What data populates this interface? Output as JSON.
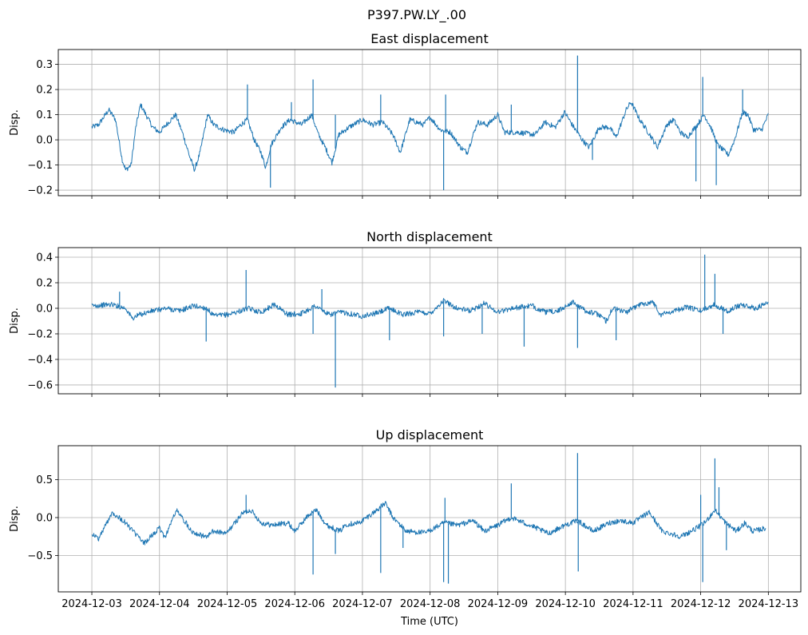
{
  "chart_data": {
    "type": "line",
    "suptitle": "P397.PW.LY_.00",
    "xlabel": "Time (UTC)",
    "x_unit": "days since 2024-12-03 00:00 UTC",
    "xlim": [
      -0.496,
      10.48
    ],
    "x_ticks": [
      0,
      1,
      2,
      3,
      4,
      5,
      6,
      7,
      8,
      9,
      10
    ],
    "x_tick_labels": [
      "2024-12-03",
      "2024-12-04",
      "2024-12-05",
      "2024-12-06",
      "2024-12-07",
      "2024-12-08",
      "2024-12-09",
      "2024-12-10",
      "2024-12-11",
      "2024-12-12",
      "2024-12-13"
    ],
    "grid": true,
    "color": "#1f77b4",
    "panels": [
      {
        "title": "East displacement",
        "ylabel": "Disp.",
        "ylim": [
          -0.222,
          0.359
        ],
        "y_ticks": [
          -0.2,
          -0.1,
          0.0,
          0.1,
          0.2,
          0.3
        ],
        "y_tick_labels": [
          "−0.2",
          "−0.1",
          "0.0",
          "0.1",
          "0.2",
          "0.3"
        ],
        "series": [
          [
            0,
            0.05
          ],
          [
            0.1,
            0.06
          ],
          [
            0.25,
            0.12
          ],
          [
            0.35,
            0.08
          ],
          [
            0.45,
            -0.08
          ],
          [
            0.5,
            -0.12
          ],
          [
            0.58,
            -0.1
          ],
          [
            0.65,
            0.05
          ],
          [
            0.72,
            0.14
          ],
          [
            0.8,
            0.1
          ],
          [
            0.9,
            0.05
          ],
          [
            1.0,
            0.03
          ],
          [
            1.1,
            0.06
          ],
          [
            1.24,
            0.1
          ],
          [
            1.35,
            0.02
          ],
          [
            1.45,
            -0.07
          ],
          [
            1.52,
            -0.12
          ],
          [
            1.6,
            -0.05
          ],
          [
            1.71,
            0.1
          ],
          [
            1.8,
            0.06
          ],
          [
            1.95,
            0.04
          ],
          [
            2.1,
            0.03
          ],
          [
            2.2,
            0.06
          ],
          [
            2.3,
            0.08
          ],
          [
            2.4,
            0.0
          ],
          [
            2.5,
            -0.05
          ],
          [
            2.57,
            -0.11
          ],
          [
            2.65,
            -0.02
          ],
          [
            2.8,
            0.05
          ],
          [
            2.93,
            0.08
          ],
          [
            3.1,
            0.06
          ],
          [
            3.25,
            0.1
          ],
          [
            3.35,
            0.02
          ],
          [
            3.45,
            -0.03
          ],
          [
            3.55,
            -0.09
          ],
          [
            3.65,
            0.02
          ],
          [
            3.8,
            0.05
          ],
          [
            4.0,
            0.08
          ],
          [
            4.15,
            0.06
          ],
          [
            4.3,
            0.07
          ],
          [
            4.45,
            0.02
          ],
          [
            4.56,
            -0.05
          ],
          [
            4.7,
            0.08
          ],
          [
            4.9,
            0.06
          ],
          [
            5.0,
            0.09
          ],
          [
            5.15,
            0.04
          ],
          [
            5.3,
            0.03
          ],
          [
            5.45,
            -0.03
          ],
          [
            5.55,
            -0.05
          ],
          [
            5.7,
            0.07
          ],
          [
            5.85,
            0.06
          ],
          [
            6.0,
            0.1
          ],
          [
            6.1,
            0.03
          ],
          [
            6.3,
            0.03
          ],
          [
            6.55,
            0.02
          ],
          [
            6.7,
            0.07
          ],
          [
            6.85,
            0.05
          ],
          [
            6.99,
            0.11
          ],
          [
            7.1,
            0.06
          ],
          [
            7.25,
            0.0
          ],
          [
            7.35,
            -0.03
          ],
          [
            7.5,
            0.05
          ],
          [
            7.65,
            0.05
          ],
          [
            7.75,
            0.01
          ],
          [
            7.9,
            0.12
          ],
          [
            7.97,
            0.15
          ],
          [
            8.1,
            0.08
          ],
          [
            8.25,
            0.02
          ],
          [
            8.36,
            -0.03
          ],
          [
            8.5,
            0.06
          ],
          [
            8.6,
            0.08
          ],
          [
            8.7,
            0.03
          ],
          [
            8.8,
            0.01
          ],
          [
            8.95,
            0.06
          ],
          [
            9.05,
            0.1
          ],
          [
            9.15,
            0.05
          ],
          [
            9.25,
            -0.02
          ],
          [
            9.41,
            -0.06
          ],
          [
            9.5,
            0.0
          ],
          [
            9.62,
            0.11
          ],
          [
            9.7,
            0.1
          ],
          [
            9.78,
            0.04
          ],
          [
            9.9,
            0.04
          ],
          [
            10.0,
            0.1
          ]
        ],
        "spikes": [
          [
            2.3,
            0.22
          ],
          [
            2.64,
            -0.19
          ],
          [
            2.95,
            0.15
          ],
          [
            3.27,
            0.24
          ],
          [
            3.6,
            0.1
          ],
          [
            4.27,
            0.18
          ],
          [
            5.2,
            -0.2
          ],
          [
            5.23,
            0.18
          ],
          [
            6.2,
            0.14
          ],
          [
            7.18,
            0.335
          ],
          [
            7.4,
            -0.08
          ],
          [
            8.93,
            -0.165
          ],
          [
            9.03,
            0.25
          ],
          [
            9.23,
            -0.18
          ],
          [
            9.62,
            0.2
          ]
        ]
      },
      {
        "title": "North displacement",
        "ylabel": "Disp.",
        "ylim": [
          -0.669,
          0.475
        ],
        "y_ticks": [
          -0.6,
          -0.4,
          -0.2,
          0.0,
          0.2,
          0.4
        ],
        "y_tick_labels": [
          "−0.6",
          "−0.4",
          "−0.2",
          "0.0",
          "0.2",
          "0.4"
        ],
        "series": [
          [
            0,
            0.02
          ],
          [
            0.3,
            0.03
          ],
          [
            0.5,
            0.0
          ],
          [
            0.6,
            -0.08
          ],
          [
            0.7,
            -0.05
          ],
          [
            0.9,
            -0.02
          ],
          [
            1.1,
            0.0
          ],
          [
            1.3,
            -0.02
          ],
          [
            1.5,
            0.02
          ],
          [
            1.7,
            0.0
          ],
          [
            1.8,
            -0.06
          ],
          [
            2.0,
            -0.05
          ],
          [
            2.2,
            -0.02
          ],
          [
            2.3,
            0.0
          ],
          [
            2.5,
            -0.03
          ],
          [
            2.7,
            0.03
          ],
          [
            2.9,
            -0.05
          ],
          [
            3.1,
            -0.04
          ],
          [
            3.3,
            0.02
          ],
          [
            3.5,
            -0.05
          ],
          [
            3.7,
            -0.03
          ],
          [
            4.0,
            -0.06
          ],
          [
            4.2,
            -0.04
          ],
          [
            4.4,
            0.0
          ],
          [
            4.6,
            -0.05
          ],
          [
            4.8,
            -0.03
          ],
          [
            5.0,
            -0.04
          ],
          [
            5.2,
            0.06
          ],
          [
            5.4,
            0.0
          ],
          [
            5.6,
            -0.02
          ],
          [
            5.8,
            0.04
          ],
          [
            6.0,
            -0.03
          ],
          [
            6.2,
            0.0
          ],
          [
            6.5,
            0.02
          ],
          [
            6.7,
            -0.03
          ],
          [
            6.9,
            -0.02
          ],
          [
            7.1,
            0.05
          ],
          [
            7.3,
            -0.02
          ],
          [
            7.5,
            -0.05
          ],
          [
            7.6,
            -0.1
          ],
          [
            7.7,
            0.0
          ],
          [
            7.9,
            -0.03
          ],
          [
            8.1,
            0.03
          ],
          [
            8.3,
            0.05
          ],
          [
            8.4,
            -0.05
          ],
          [
            8.6,
            -0.02
          ],
          [
            8.8,
            0.01
          ],
          [
            9.0,
            -0.02
          ],
          [
            9.2,
            0.03
          ],
          [
            9.4,
            -0.02
          ],
          [
            9.6,
            0.03
          ],
          [
            9.8,
            0.0
          ],
          [
            10.0,
            0.04
          ]
        ],
        "spikes": [
          [
            0.41,
            0.13
          ],
          [
            1.69,
            -0.26
          ],
          [
            2.28,
            0.3
          ],
          [
            3.27,
            -0.2
          ],
          [
            3.4,
            0.15
          ],
          [
            3.6,
            -0.62
          ],
          [
            4.4,
            -0.25
          ],
          [
            5.2,
            -0.22
          ],
          [
            5.77,
            -0.2
          ],
          [
            6.39,
            -0.3
          ],
          [
            7.18,
            -0.31
          ],
          [
            7.75,
            -0.25
          ],
          [
            9.06,
            0.42
          ],
          [
            9.21,
            0.27
          ],
          [
            9.33,
            -0.2
          ]
        ]
      },
      {
        "title": "Up displacement",
        "ylabel": "Disp.",
        "ylim": [
          -0.979,
          0.947
        ],
        "y_ticks": [
          -0.5,
          0.0,
          0.5
        ],
        "y_tick_labels": [
          "−0.5",
          "0.0",
          "0.5"
        ],
        "series": [
          [
            0,
            -0.21
          ],
          [
            0.1,
            -0.28
          ],
          [
            0.3,
            0.07
          ],
          [
            0.5,
            -0.07
          ],
          [
            0.77,
            -0.34
          ],
          [
            1.0,
            -0.14
          ],
          [
            1.08,
            -0.26
          ],
          [
            1.25,
            0.1
          ],
          [
            1.48,
            -0.18
          ],
          [
            1.68,
            -0.26
          ],
          [
            1.8,
            -0.18
          ],
          [
            1.99,
            -0.21
          ],
          [
            2.23,
            0.06
          ],
          [
            2.35,
            0.1
          ],
          [
            2.5,
            -0.07
          ],
          [
            2.66,
            -0.1
          ],
          [
            2.9,
            -0.07
          ],
          [
            3.0,
            -0.18
          ],
          [
            3.2,
            0.03
          ],
          [
            3.32,
            0.1
          ],
          [
            3.47,
            -0.1
          ],
          [
            3.67,
            -0.18
          ],
          [
            3.75,
            -0.09
          ],
          [
            3.95,
            -0.07
          ],
          [
            4.14,
            0.05
          ],
          [
            4.34,
            0.19
          ],
          [
            4.45,
            0.0
          ],
          [
            4.65,
            -0.18
          ],
          [
            4.93,
            -0.2
          ],
          [
            5.21,
            -0.07
          ],
          [
            5.41,
            -0.1
          ],
          [
            5.64,
            -0.04
          ],
          [
            5.8,
            -0.18
          ],
          [
            6.0,
            -0.1
          ],
          [
            6.2,
            0.0
          ],
          [
            6.47,
            -0.1
          ],
          [
            6.75,
            -0.21
          ],
          [
            6.99,
            -0.1
          ],
          [
            7.18,
            -0.04
          ],
          [
            7.41,
            -0.18
          ],
          [
            7.65,
            -0.07
          ],
          [
            7.81,
            -0.04
          ],
          [
            8.0,
            -0.07
          ],
          [
            8.24,
            0.07
          ],
          [
            8.43,
            -0.18
          ],
          [
            8.71,
            -0.25
          ],
          [
            8.94,
            -0.14
          ],
          [
            9.06,
            -0.07
          ],
          [
            9.21,
            0.1
          ],
          [
            9.37,
            -0.07
          ],
          [
            9.53,
            -0.18
          ],
          [
            9.65,
            -0.07
          ],
          [
            9.77,
            -0.18
          ],
          [
            9.96,
            -0.14
          ]
        ],
        "spikes": [
          [
            2.28,
            0.3
          ],
          [
            3.27,
            -0.75
          ],
          [
            3.6,
            -0.48
          ],
          [
            4.27,
            -0.73
          ],
          [
            4.6,
            -0.4
          ],
          [
            5.2,
            -0.85
          ],
          [
            5.22,
            0.26
          ],
          [
            5.27,
            -0.87
          ],
          [
            6.2,
            0.45
          ],
          [
            7.18,
            0.85
          ],
          [
            7.19,
            -0.71
          ],
          [
            9.0,
            0.3
          ],
          [
            9.03,
            -0.85
          ],
          [
            9.21,
            0.78
          ],
          [
            9.27,
            0.4
          ],
          [
            9.38,
            -0.43
          ]
        ]
      }
    ]
  }
}
